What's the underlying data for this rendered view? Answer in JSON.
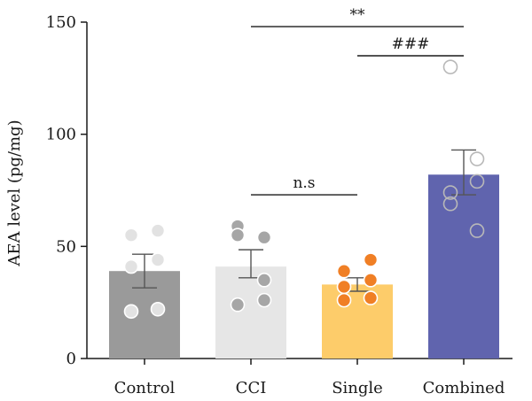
{
  "chart_data": {
    "type": "bar",
    "ylabel": "AEA level (pg/mg)",
    "xlabel": "",
    "ylim": [
      0,
      150
    ],
    "yticks": [
      0,
      50,
      100,
      150
    ],
    "grid": false,
    "categories": [
      {
        "label": "Control",
        "mean": 39,
        "sem_upper": 46.5,
        "sem_lower": 31.5,
        "bar_color": "#9a9a9a",
        "point_fill": "#e2e2e2",
        "point_stroke": "#ffffff",
        "points": [
          55,
          57,
          41,
          44,
          21,
          22
        ]
      },
      {
        "label": "CCI",
        "mean": 41,
        "sem_upper": 48.5,
        "sem_lower": 36,
        "bar_color": "#e6e6e6",
        "point_fill": "#a6a6a6",
        "point_stroke": "#ffffff",
        "points": [
          59,
          54,
          55,
          35,
          24,
          26
        ]
      },
      {
        "label": "Single",
        "mean": 33,
        "sem_upper": 36,
        "sem_lower": 30,
        "bar_color": "#fdcc6a",
        "point_fill": "#f07f25",
        "point_stroke": "#ffffff",
        "points": [
          39,
          44,
          32,
          35,
          26,
          27
        ]
      },
      {
        "label": "Combined",
        "mean": 82,
        "sem_upper": 93,
        "sem_lower": 73,
        "bar_color": "#6064ae",
        "point_fill": "none",
        "point_stroke": "#b8b8b8",
        "points": [
          130,
          89,
          74,
          79,
          69,
          57
        ]
      }
    ],
    "comparisons": [
      {
        "from": "CCI",
        "to": "Combined",
        "y": 148,
        "label": "**"
      },
      {
        "from": "Single",
        "to": "Combined",
        "y": 135,
        "label": "###"
      },
      {
        "from": "CCI",
        "to": "Single",
        "y": 73,
        "label": "n.s"
      }
    ]
  }
}
